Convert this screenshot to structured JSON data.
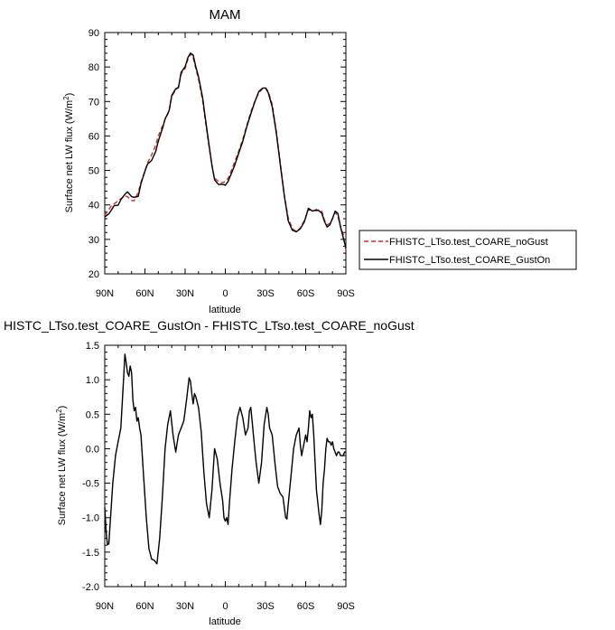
{
  "chart_data": [
    {
      "type": "line",
      "title": "MAM",
      "xlabel": "latitude",
      "ylabel": "Surface net LW flux (W/m",
      "ylabel_sup": "2",
      "ylabel_end": ")",
      "xlim": [
        90,
        -90
      ],
      "ylim": [
        20,
        90
      ],
      "x_ticks": [
        {
          "value": 90,
          "label": "90N"
        },
        {
          "value": 60,
          "label": "60N"
        },
        {
          "value": 30,
          "label": "30N"
        },
        {
          "value": 0,
          "label": "0"
        },
        {
          "value": -30,
          "label": "30S"
        },
        {
          "value": -60,
          "label": "60S"
        },
        {
          "value": -90,
          "label": "90S"
        }
      ],
      "y_ticks": [
        {
          "value": 20,
          "label": "20"
        },
        {
          "value": 30,
          "label": "30"
        },
        {
          "value": 40,
          "label": "40"
        },
        {
          "value": 50,
          "label": "50"
        },
        {
          "value": 60,
          "label": "60"
        },
        {
          "value": 70,
          "label": "70"
        },
        {
          "value": 80,
          "label": "80"
        },
        {
          "value": 90,
          "label": "90"
        }
      ],
      "legend_position": "right",
      "series": [
        {
          "name": "FHISTC_LTso.test_COARE_noGust",
          "color": "#d62728",
          "dash": "dashed",
          "x": [
            90,
            87,
            85,
            83,
            80,
            78,
            75,
            73,
            70,
            68,
            65,
            63,
            60,
            58,
            55,
            52,
            50,
            47,
            45,
            42,
            40,
            37,
            35,
            33,
            30,
            28,
            26,
            24,
            22,
            20,
            17,
            15,
            12,
            10,
            8,
            5,
            3,
            1,
            0,
            -2,
            -4,
            -7,
            -10,
            -13,
            -16,
            -19,
            -22,
            -25,
            -28,
            -30,
            -32,
            -35,
            -38,
            -41,
            -44,
            -47,
            -50,
            -53,
            -56,
            -59,
            -62,
            -65,
            -68,
            -70,
            -72,
            -74,
            -76,
            -78,
            -80,
            -82,
            -84,
            -86,
            -88,
            -90
          ],
          "y": [
            37,
            38.6,
            39.8,
            40.3,
            41.2,
            41.8,
            42.6,
            42.4,
            41.3,
            41.2,
            43.7,
            46.6,
            49.9,
            52.3,
            54.5,
            57.3,
            60.0,
            62.8,
            64.8,
            67.2,
            71.4,
            73.4,
            74.3,
            78.0,
            79.6,
            82.2,
            83.8,
            82.6,
            79.5,
            76.5,
            70.4,
            64.5,
            56.5,
            51.2,
            47.8,
            46.8,
            46.4,
            46.6,
            46.8,
            47.7,
            49.5,
            52.4,
            55.6,
            59.0,
            63.0,
            66.9,
            70.0,
            72.5,
            73.8,
            74.0,
            72.9,
            69.2,
            61.6,
            52.5,
            42.8,
            36.2,
            33.1,
            32.3,
            33.3,
            35.5,
            38.5,
            38.5,
            38.3,
            38.6,
            38.2,
            35.5,
            34.2,
            34.6,
            36.0,
            37.8,
            36.8,
            33.6,
            31.5,
            26.8
          ]
        },
        {
          "name": "FHISTC_LTso.test_COARE_GustOn",
          "color": "#000000",
          "dash": "solid",
          "x": [
            90,
            87,
            85,
            83,
            80,
            78,
            75,
            73,
            70,
            68,
            65,
            63,
            60,
            58,
            55,
            52,
            50,
            47,
            45,
            42,
            40,
            37,
            35,
            33,
            30,
            28,
            26,
            24,
            22,
            20,
            17,
            15,
            12,
            10,
            8,
            5,
            3,
            1,
            0,
            -2,
            -4,
            -7,
            -10,
            -13,
            -16,
            -19,
            -22,
            -25,
            -28,
            -30,
            -32,
            -35,
            -38,
            -41,
            -44,
            -47,
            -50,
            -53,
            -56,
            -59,
            -62,
            -65,
            -68,
            -70,
            -72,
            -74,
            -76,
            -78,
            -80,
            -82,
            -84,
            -86,
            -88,
            -90
          ],
          "y": [
            36.5,
            37.4,
            38.5,
            39.8,
            39.9,
            41.5,
            43.1,
            43.8,
            42.4,
            42.2,
            42.5,
            46.2,
            49.8,
            51.9,
            52.9,
            55.5,
            58.5,
            62.1,
            64.9,
            67.3,
            71.8,
            73.7,
            74.0,
            78.5,
            80.1,
            82.7,
            84.0,
            83.5,
            80.0,
            77.2,
            71.2,
            65.3,
            57.0,
            51.5,
            47.3,
            45.9,
            46.0,
            45.9,
            45.7,
            46.8,
            48.6,
            51.5,
            55.0,
            58.4,
            62.6,
            66.4,
            69.8,
            72.9,
            73.9,
            73.9,
            72.6,
            68.5,
            61.0,
            51.8,
            42.7,
            35.3,
            32.7,
            32.2,
            33.1,
            35.1,
            39.0,
            38.2,
            38.6,
            38.3,
            37.6,
            35.2,
            33.6,
            34.2,
            36.1,
            38.2,
            37.6,
            33.6,
            30.6,
            27.5
          ]
        }
      ]
    },
    {
      "type": "line",
      "title": "HISTC_LTso.test_COARE_GustOn - FHISTC_LTso.test_COARE_noGust",
      "xlabel": "latitude",
      "ylabel": "Surface net LW flux (W/m",
      "ylabel_sup": "2",
      "ylabel_end": ")",
      "xlim": [
        90,
        -90
      ],
      "ylim": [
        -2.0,
        1.5
      ],
      "x_ticks": [
        {
          "value": 90,
          "label": "90N"
        },
        {
          "value": 60,
          "label": "60N"
        },
        {
          "value": 30,
          "label": "30N"
        },
        {
          "value": 0,
          "label": "0"
        },
        {
          "value": -30,
          "label": "30S"
        },
        {
          "value": -60,
          "label": "60S"
        },
        {
          "value": -90,
          "label": "90S"
        }
      ],
      "y_ticks": [
        {
          "value": -2.0,
          "label": "-2.0"
        },
        {
          "value": -1.5,
          "label": "-1.5"
        },
        {
          "value": -1.0,
          "label": "-1.0"
        },
        {
          "value": -0.5,
          "label": "-0.5"
        },
        {
          "value": 0.0,
          "label": "0.0"
        },
        {
          "value": 0.5,
          "label": "0.5"
        },
        {
          "value": 1.0,
          "label": "1.0"
        },
        {
          "value": 1.5,
          "label": "1.5"
        }
      ],
      "series": [
        {
          "color": "#000000",
          "dash": "solid",
          "x": [
            90,
            89,
            88,
            87,
            86,
            84,
            82,
            80,
            78,
            76,
            75,
            74,
            73,
            72,
            71,
            70,
            69,
            68,
            67,
            66,
            65,
            64,
            63,
            61,
            59,
            57,
            55,
            53,
            51,
            49,
            48,
            47,
            45,
            43,
            41,
            39,
            37,
            35,
            33,
            31,
            29,
            27,
            26,
            25,
            24,
            23,
            22,
            20,
            18,
            16,
            14,
            12,
            10,
            8,
            6,
            4,
            2,
            1,
            0,
            -1,
            -2,
            -3,
            -5,
            -7,
            -9,
            -11,
            -13,
            -15,
            -16,
            -17,
            -18,
            -19,
            -20,
            -21,
            -23,
            -25,
            -27,
            -29,
            -31,
            -32,
            -33,
            -35,
            -37,
            -39,
            -41,
            -43,
            -45,
            -46,
            -47,
            -49,
            -51,
            -53,
            -55,
            -56,
            -57,
            -58,
            -59,
            -60,
            -61,
            -62,
            -63,
            -64,
            -65,
            -66,
            -68,
            -70,
            -71,
            -72,
            -73,
            -74,
            -75,
            -76,
            -77,
            -78,
            -79,
            -80,
            -81,
            -82,
            -83,
            -84,
            -85,
            -86,
            -87,
            -88,
            -89,
            -90
          ],
          "y": [
            -0.85,
            -1.2,
            -1.39,
            -1.38,
            -1.1,
            -0.5,
            -0.1,
            0.1,
            0.3,
            1.0,
            1.37,
            1.25,
            1.1,
            1.05,
            1.2,
            1.1,
            0.7,
            0.55,
            0.6,
            0.4,
            0.45,
            0.3,
            0.2,
            -0.4,
            -1.0,
            -1.45,
            -1.6,
            -1.62,
            -1.67,
            -1.3,
            -1.0,
            -0.7,
            0.0,
            0.35,
            0.55,
            0.2,
            -0.05,
            0.2,
            0.3,
            0.4,
            0.7,
            1.03,
            0.98,
            0.8,
            0.65,
            0.8,
            0.75,
            0.6,
            0.25,
            -0.35,
            -0.8,
            -1.0,
            -0.6,
            0.0,
            -0.15,
            -0.5,
            -0.75,
            -1.0,
            -1.05,
            -1.0,
            -1.1,
            -0.8,
            -0.3,
            0.1,
            0.45,
            0.6,
            0.45,
            0.2,
            0.25,
            0.3,
            0.55,
            0.6,
            0.4,
            0.2,
            -0.2,
            -0.5,
            -0.2,
            0.35,
            0.6,
            0.5,
            0.3,
            0.2,
            -0.2,
            -0.55,
            -0.65,
            -0.7,
            -1.0,
            -1.02,
            -0.8,
            -0.4,
            0.0,
            0.2,
            0.3,
            0.05,
            -0.1,
            0.0,
            0.1,
            0.2,
            0.1,
            0.3,
            0.55,
            0.45,
            0.5,
            0.2,
            -0.6,
            -0.95,
            -1.1,
            -0.9,
            -0.5,
            -0.3,
            0.0,
            0.15,
            0.1,
            0.1,
            0.05,
            0.1,
            0.0,
            -0.05,
            -0.1,
            -0.05,
            -0.05,
            -0.1,
            -0.1,
            -0.1,
            -0.05,
            -0.05
          ]
        }
      ]
    }
  ]
}
